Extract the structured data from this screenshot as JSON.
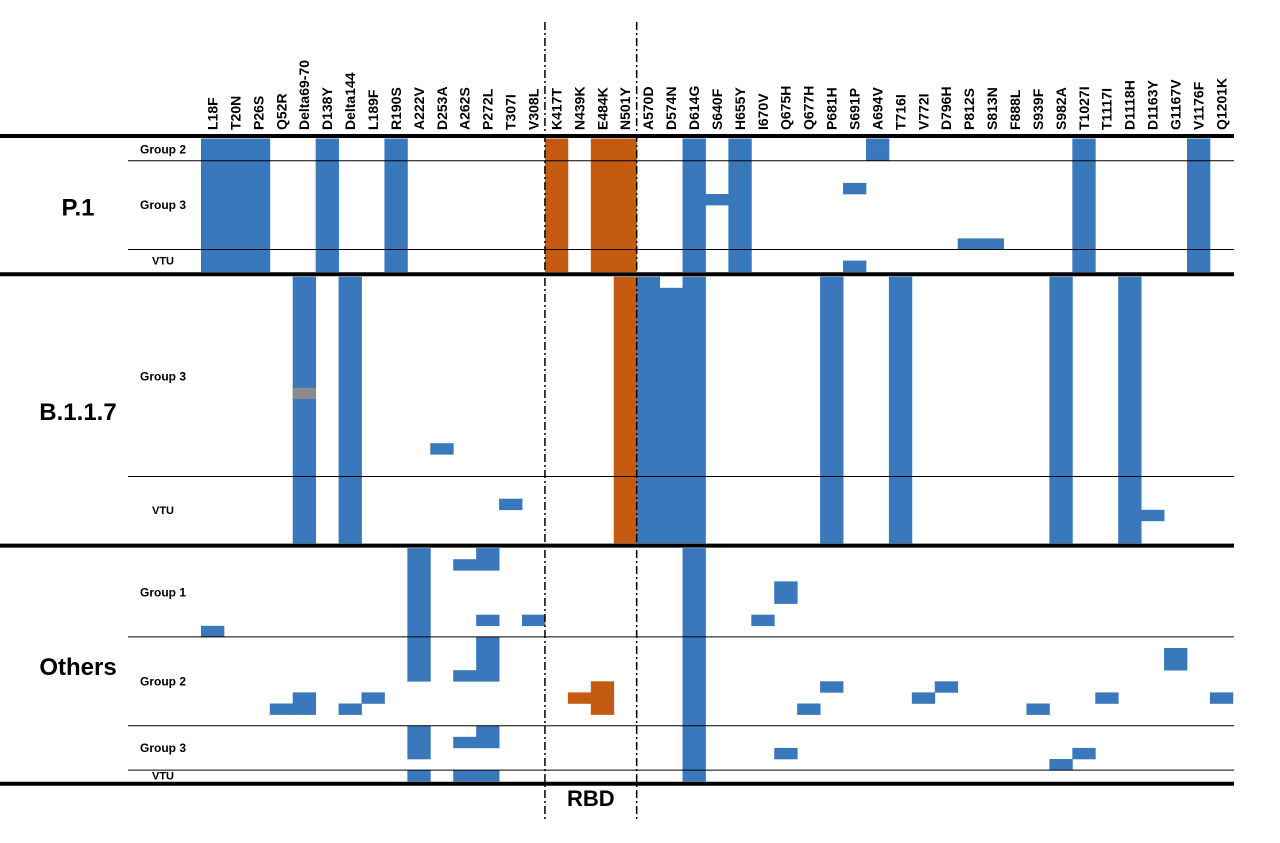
{
  "chart_data": {
    "type": "heatmap",
    "title": "",
    "mutations": [
      "L18F",
      "T20N",
      "P26S",
      "Q52R",
      "Delta69-70",
      "D138Y",
      "Delta144",
      "L189F",
      "R190S",
      "A222V",
      "D253A",
      "A262S",
      "P272L",
      "T307I",
      "V308L",
      "K417T",
      "N439K",
      "E484K",
      "N501Y",
      "A570D",
      "D574N",
      "D614G",
      "S640F",
      "H655Y",
      "I670V",
      "Q675H",
      "Q677H",
      "P681H",
      "S691P",
      "A694V",
      "T716I",
      "V772I",
      "D796H",
      "P812S",
      "S813N",
      "F888L",
      "S939F",
      "S982A",
      "T1027I",
      "T1117I",
      "D1118H",
      "D1163Y",
      "G1167V",
      "V1176F",
      "Q1201K"
    ],
    "rbd_label": "RBD",
    "rbd_mutations": [
      "K417T",
      "N439K",
      "E484K",
      "N501Y"
    ],
    "colors": {
      "present": "#3878bb",
      "rbd_present": "#c55a11",
      "ambiguous": "#8c8c8c"
    },
    "lineages": [
      {
        "name": "P.1",
        "groups": [
          {
            "label": "Group 2",
            "rows": 2,
            "cells": [
              {
                "r": [
                  0,
                  2
                ],
                "m": [
                  "L18F",
                  "T20N",
                  "P26S"
                ]
              },
              {
                "r": [
                  0,
                  2
                ],
                "m": [
                  "D138Y",
                  "R190S",
                  "K417T",
                  "E484K",
                  "N501Y",
                  "D614G",
                  "H655Y",
                  "T1027I",
                  "V1176F"
                ]
              },
              {
                "r": [
                  0,
                  1
                ],
                "m": [
                  "A694V"
                ]
              },
              {
                "r": [
                  1,
                  2
                ],
                "m": [
                  "A694V"
                ]
              }
            ]
          },
          {
            "label": "Group 3",
            "rows": 8,
            "cells": [
              {
                "r": [
                  0,
                  8
                ],
                "m": [
                  "L18F",
                  "T20N",
                  "P26S",
                  "D138Y",
                  "R190S",
                  "K417T",
                  "E484K",
                  "N501Y",
                  "D614G",
                  "H655Y",
                  "T1027I",
                  "V1176F"
                ]
              },
              {
                "r": [
                  3,
                  4
                ],
                "m": [
                  "S640F"
                ]
              },
              {
                "r": [
                  2,
                  3
                ],
                "m": [
                  "S691P"
                ]
              },
              {
                "r": [
                  7,
                  8
                ],
                "m": [
                  "P812S",
                  "S813N"
                ]
              }
            ]
          },
          {
            "label": "VTU",
            "rows": 2,
            "cells": [
              {
                "r": [
                  0,
                  2
                ],
                "m": [
                  "L18F",
                  "T20N",
                  "P26S",
                  "D138Y",
                  "R190S",
                  "K417T",
                  "E484K",
                  "N501Y",
                  "D614G",
                  "H655Y",
                  "T1027I",
                  "V1176F"
                ]
              },
              {
                "r": [
                  1,
                  2
                ],
                "m": [
                  "S691P"
                ]
              }
            ]
          }
        ]
      },
      {
        "name": "B.1.1.7",
        "groups": [
          {
            "label": "Group 3",
            "rows": 18,
            "cells": [
              {
                "r": [
                  0,
                  18
                ],
                "m": [
                  "Delta69-70",
                  "Delta144",
                  "N501Y",
                  "A570D",
                  "D614G",
                  "P681H",
                  "T716I",
                  "S982A",
                  "D1118H"
                ]
              },
              {
                "r": [
                  1,
                  18
                ],
                "m": [
                  "D574N"
                ]
              },
              {
                "r": [
                  10,
                  11
                ],
                "m": [
                  "Delta69-70"
                ],
                "ambiguous": true
              },
              {
                "r": [
                  15,
                  16
                ],
                "m": [
                  "D253A"
                ]
              }
            ]
          },
          {
            "label": "VTU",
            "rows": 6,
            "cells": [
              {
                "r": [
                  0,
                  6
                ],
                "m": [
                  "Delta69-70",
                  "Delta144",
                  "N501Y",
                  "A570D",
                  "D574N",
                  "D614G",
                  "P681H",
                  "T716I",
                  "S982A",
                  "D1118H"
                ]
              },
              {
                "r": [
                  2,
                  3
                ],
                "m": [
                  "T307I"
                ]
              },
              {
                "r": [
                  3,
                  4
                ],
                "m": [
                  "D1163Y"
                ]
              }
            ]
          }
        ]
      },
      {
        "name": "Others",
        "groups": [
          {
            "label": "Group 1",
            "rows": 8,
            "cells": [
              {
                "r": [
                  0,
                  8
                ],
                "m": [
                  "A222V",
                  "D614G"
                ]
              },
              {
                "r": [
                  1,
                  2
                ],
                "m": [
                  "A262S"
                ]
              },
              {
                "r": [
                  0,
                  2
                ],
                "m": [
                  "P272L"
                ]
              },
              {
                "r": [
                  6,
                  7
                ],
                "m": [
                  "P272L",
                  "V308L",
                  "I670V"
                ]
              },
              {
                "r": [
                  3,
                  5
                ],
                "m": [
                  "Q675H"
                ]
              },
              {
                "r": [
                  7,
                  8
                ],
                "m": [
                  "L18F"
                ]
              }
            ]
          },
          {
            "label": "Group 2",
            "rows": 8,
            "cells": [
              {
                "r": [
                  0,
                  8
                ],
                "m": [
                  "D614G"
                ]
              },
              {
                "r": [
                  0,
                  4
                ],
                "m": [
                  "A222V",
                  "P272L"
                ]
              },
              {
                "r": [
                  3,
                  4
                ],
                "m": [
                  "A262S"
                ]
              },
              {
                "r": [
                  1,
                  3
                ],
                "m": [
                  "G1167V"
                ]
              },
              {
                "r": [
                  4,
                  5
                ],
                "m": [
                  "P681H",
                  "D796H"
                ]
              },
              {
                "r": [
                  4,
                  5
                ],
                "m": [
                  "E484K"
                ],
                "rbd": true
              },
              {
                "r": [
                  5,
                  6
                ],
                "m": [
                  "N439K",
                  "E484K"
                ],
                "rbd": true
              },
              {
                "r": [
                  6,
                  7
                ],
                "m": [
                  "E484K"
                ],
                "rbd": true
              },
              {
                "r": [
                  5,
                  7
                ],
                "m": [
                  "Delta69-70"
                ]
              },
              {
                "r": [
                  5,
                  6
                ],
                "m": [
                  "L189F",
                  "V772I",
                  "T1117I",
                  "Q1201K"
                ]
              },
              {
                "r": [
                  6,
                  7
                ],
                "m": [
                  "Q52R",
                  "Delta144",
                  "Q677H",
                  "S939F"
                ]
              }
            ]
          },
          {
            "label": "Group 3",
            "rows": 4,
            "cells": [
              {
                "r": [
                  0,
                  4
                ],
                "m": [
                  "D614G"
                ]
              },
              {
                "r": [
                  0,
                  3
                ],
                "m": [
                  "A222V"
                ]
              },
              {
                "r": [
                  1,
                  2
                ],
                "m": [
                  "A262S"
                ]
              },
              {
                "r": [
                  0,
                  2
                ],
                "m": [
                  "P272L"
                ]
              },
              {
                "r": [
                  2,
                  3
                ],
                "m": [
                  "Q675H",
                  "T1027I"
                ]
              },
              {
                "r": [
                  3,
                  4
                ],
                "m": [
                  "S982A"
                ]
              }
            ]
          },
          {
            "label": "VTU",
            "rows": 1,
            "cells": [
              {
                "r": [
                  0,
                  1
                ],
                "m": [
                  "A222V",
                  "A262S",
                  "P272L",
                  "D614G"
                ]
              }
            ]
          }
        ]
      }
    ]
  }
}
